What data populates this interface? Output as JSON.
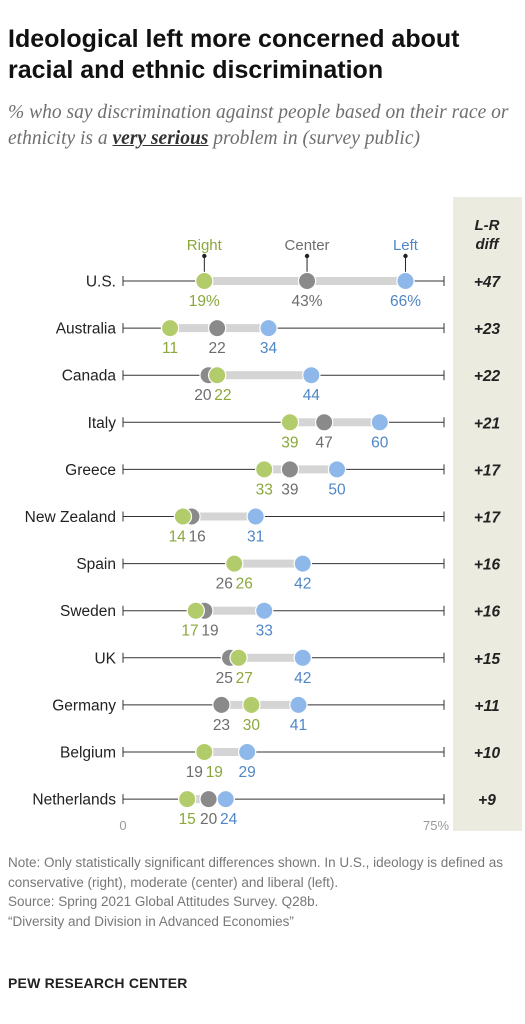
{
  "title": "Ideological left more concerned about racial and ethnic discrimination",
  "subtitle": {
    "before": "% who say discrimination against people based on their race or ethnicity is a ",
    "emphasis": "very serious",
    "after": " problem in (survey public)"
  },
  "notes": {
    "note": "Note: Only statistically significant differences shown. In U.S., ideology is defined as conservative (right), moderate (center) and liberal (left).",
    "source": "Source: Spring 2021 Global Attitudes Survey. Q28b.",
    "report": "“Diversity and Division in Advanced Economies”"
  },
  "brand": "PEW RESEARCH CENTER",
  "colors": {
    "right": "#b3cc6b",
    "center": "#8a8a8a",
    "left": "#8fb8ea",
    "right_text": "#8aa83a",
    "center_text": "#6d6d6d",
    "left_text": "#4f86c6",
    "diff_column": "#ecebe0"
  },
  "chart_data": {
    "type": "dot",
    "xlim": [
      0,
      75
    ],
    "x_tick_labels": [
      "0",
      "75%"
    ],
    "legend": [
      "Right",
      "Center",
      "Left"
    ],
    "diff_header": "L-R diff",
    "categories": [
      "U.S.",
      "Australia",
      "Canada",
      "Italy",
      "Greece",
      "New Zealand",
      "Spain",
      "Sweden",
      "UK",
      "Germany",
      "Belgium",
      "Netherlands"
    ],
    "series": [
      {
        "name": "Right",
        "values": [
          19,
          11,
          22,
          39,
          33,
          14,
          26,
          17,
          27,
          30,
          19,
          15
        ]
      },
      {
        "name": "Center",
        "values": [
          43,
          22,
          20,
          47,
          39,
          16,
          26,
          19,
          25,
          23,
          19,
          20
        ]
      },
      {
        "name": "Left",
        "values": [
          66,
          34,
          44,
          60,
          50,
          31,
          42,
          33,
          42,
          41,
          29,
          24
        ]
      }
    ],
    "value_labels": {
      "Right": [
        "19%",
        "11",
        "22",
        "39",
        "33",
        "14",
        "26",
        "17",
        "27",
        "30",
        "19",
        "15"
      ],
      "Center": [
        "43%",
        "22",
        "20",
        "47",
        "39",
        "16",
        "26",
        "19",
        "25",
        "23",
        "19",
        "20"
      ],
      "Left": [
        "66%",
        "34",
        "44",
        "60",
        "50",
        "31",
        "42",
        "33",
        "42",
        "41",
        "29",
        "24"
      ]
    },
    "diff": [
      "+47",
      "+23",
      "+22",
      "+21",
      "+17",
      "+17",
      "+16",
      "+16",
      "+15",
      "+11",
      "+10",
      "+9"
    ]
  }
}
